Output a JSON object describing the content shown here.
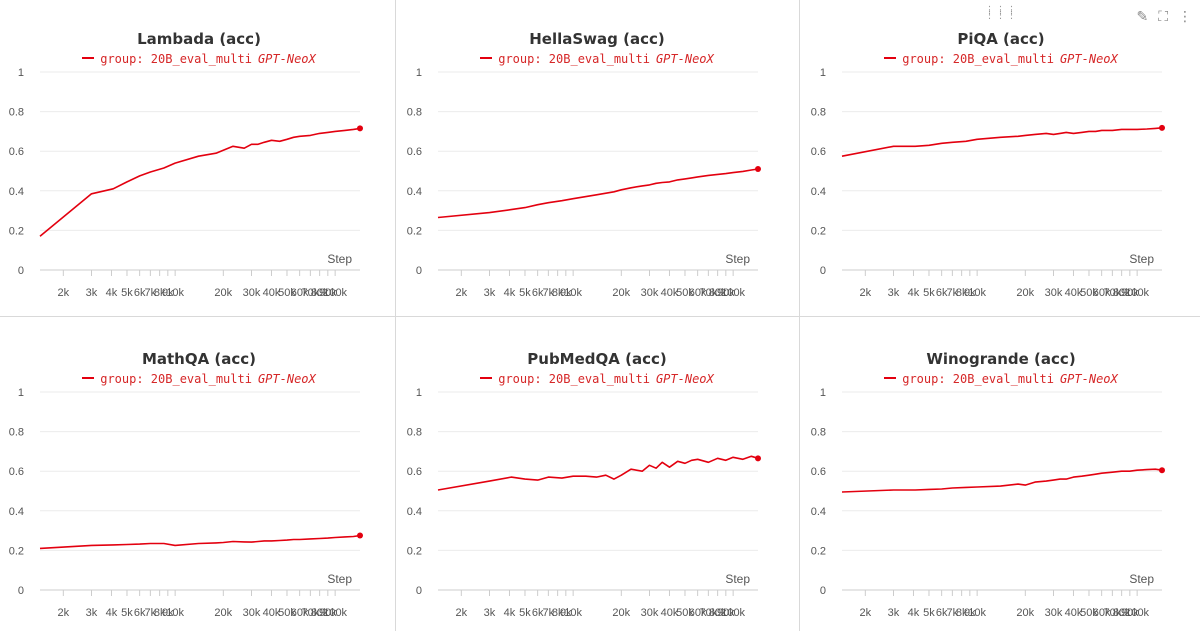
{
  "legend": {
    "label": "group: 20B_eval_multi",
    "tag": "GPT-NeoX"
  },
  "colors": {
    "series": "#e3000f",
    "grid": "#ebebeb",
    "axis_text": "#555555"
  },
  "x_axis": {
    "label": "Step",
    "scale": "log",
    "ticks": [
      "2k",
      "3k",
      "4k",
      "5k",
      "6k",
      "7k",
      "8k",
      "9k",
      "10k",
      "20k",
      "30k",
      "40k",
      "50k",
      "60k",
      "70k",
      "80k",
      "90k",
      "100k"
    ]
  },
  "y_axis": {
    "ticks": [
      "0",
      "0.2",
      "0.4",
      "0.6",
      "0.8",
      "1"
    ]
  },
  "toolbar": {
    "edit_icon": "pencil-icon",
    "expand_icon": "expand-icon",
    "more_icon": "more-vertical-icon",
    "drag_icon": "drag-handle-icon"
  },
  "chart_data": [
    {
      "type": "line",
      "title": "Lambada (acc)",
      "ylim": [
        0,
        1
      ],
      "xlim": [
        1430,
        143000
      ],
      "series": [
        {
          "name": "group: 20B_eval_multi",
          "x": [
            1430,
            3000,
            4100,
            5000,
            6000,
            7000,
            8500,
            10000,
            14000,
            18000,
            20000,
            23000,
            27000,
            30000,
            33000,
            36000,
            40000,
            45000,
            50000,
            55000,
            60000,
            70000,
            80000,
            90000,
            100000,
            115000,
            130000,
            143000
          ],
          "y": [
            0.17,
            0.385,
            0.41,
            0.445,
            0.475,
            0.495,
            0.515,
            0.54,
            0.575,
            0.59,
            0.605,
            0.625,
            0.615,
            0.635,
            0.635,
            0.645,
            0.655,
            0.65,
            0.66,
            0.67,
            0.675,
            0.68,
            0.69,
            0.695,
            0.7,
            0.705,
            0.71,
            0.715
          ]
        }
      ]
    },
    {
      "type": "line",
      "title": "HellaSwag (acc)",
      "ylim": [
        0,
        1
      ],
      "xlim": [
        1430,
        143000
      ],
      "series": [
        {
          "name": "group: 20B_eval_multi",
          "x": [
            1430,
            3000,
            4100,
            5000,
            6000,
            7000,
            8500,
            10000,
            14000,
            18000,
            20000,
            23000,
            27000,
            30000,
            33000,
            36000,
            40000,
            45000,
            50000,
            55000,
            60000,
            70000,
            80000,
            90000,
            100000,
            115000,
            130000,
            143000
          ],
          "y": [
            0.265,
            0.29,
            0.305,
            0.315,
            0.33,
            0.34,
            0.35,
            0.36,
            0.38,
            0.395,
            0.405,
            0.415,
            0.425,
            0.43,
            0.438,
            0.442,
            0.445,
            0.455,
            0.46,
            0.465,
            0.47,
            0.478,
            0.483,
            0.487,
            0.492,
            0.498,
            0.505,
            0.51
          ]
        }
      ]
    },
    {
      "type": "line",
      "title": "PiQA (acc)",
      "ylim": [
        0,
        1
      ],
      "xlim": [
        1430,
        143000
      ],
      "series": [
        {
          "name": "group: 20B_eval_multi",
          "x": [
            1430,
            3000,
            4100,
            5000,
            6000,
            7000,
            8500,
            10000,
            14000,
            18000,
            20000,
            23000,
            27000,
            30000,
            33000,
            36000,
            40000,
            45000,
            50000,
            55000,
            60000,
            70000,
            80000,
            90000,
            100000,
            115000,
            130000,
            143000
          ],
          "y": [
            0.575,
            0.625,
            0.625,
            0.63,
            0.64,
            0.645,
            0.65,
            0.66,
            0.67,
            0.675,
            0.68,
            0.685,
            0.69,
            0.685,
            0.69,
            0.695,
            0.69,
            0.695,
            0.7,
            0.7,
            0.705,
            0.705,
            0.71,
            0.71,
            0.71,
            0.712,
            0.715,
            0.718
          ]
        }
      ]
    },
    {
      "type": "line",
      "title": "MathQA (acc)",
      "ylim": [
        0,
        1
      ],
      "xlim": [
        1430,
        143000
      ],
      "series": [
        {
          "name": "group: 20B_eval_multi",
          "x": [
            1430,
            3000,
            4100,
            5000,
            6000,
            7000,
            8500,
            10000,
            14000,
            18000,
            20000,
            23000,
            27000,
            30000,
            33000,
            36000,
            40000,
            45000,
            50000,
            55000,
            60000,
            70000,
            80000,
            90000,
            100000,
            115000,
            130000,
            143000
          ],
          "y": [
            0.21,
            0.225,
            0.228,
            0.23,
            0.232,
            0.235,
            0.235,
            0.225,
            0.235,
            0.238,
            0.24,
            0.245,
            0.243,
            0.242,
            0.245,
            0.248,
            0.248,
            0.25,
            0.252,
            0.255,
            0.255,
            0.258,
            0.26,
            0.262,
            0.265,
            0.268,
            0.27,
            0.275
          ]
        }
      ]
    },
    {
      "type": "line",
      "title": "PubMedQA (acc)",
      "ylim": [
        0,
        1
      ],
      "xlim": [
        1430,
        143000
      ],
      "series": [
        {
          "name": "group: 20B_eval_multi",
          "x": [
            1430,
            3000,
            4100,
            5000,
            6000,
            7000,
            8500,
            10000,
            12000,
            14000,
            16000,
            18000,
            20000,
            23000,
            27000,
            30000,
            33000,
            36000,
            40000,
            45000,
            50000,
            55000,
            60000,
            70000,
            80000,
            90000,
            100000,
            115000,
            130000,
            143000
          ],
          "y": [
            0.505,
            0.55,
            0.57,
            0.56,
            0.555,
            0.57,
            0.565,
            0.575,
            0.575,
            0.57,
            0.58,
            0.56,
            0.58,
            0.61,
            0.6,
            0.63,
            0.615,
            0.645,
            0.62,
            0.65,
            0.64,
            0.655,
            0.66,
            0.645,
            0.665,
            0.655,
            0.67,
            0.66,
            0.675,
            0.665
          ]
        }
      ]
    },
    {
      "type": "line",
      "title": "Winogrande (acc)",
      "ylim": [
        0,
        1
      ],
      "xlim": [
        1430,
        143000
      ],
      "series": [
        {
          "name": "group: 20B_eval_multi",
          "x": [
            1430,
            3000,
            4100,
            5000,
            6000,
            7000,
            8500,
            10000,
            14000,
            18000,
            20000,
            23000,
            27000,
            30000,
            33000,
            36000,
            40000,
            45000,
            50000,
            55000,
            60000,
            70000,
            80000,
            90000,
            100000,
            115000,
            130000,
            143000
          ],
          "y": [
            0.495,
            0.505,
            0.505,
            0.508,
            0.51,
            0.515,
            0.518,
            0.52,
            0.525,
            0.535,
            0.53,
            0.545,
            0.55,
            0.555,
            0.56,
            0.56,
            0.57,
            0.575,
            0.58,
            0.585,
            0.59,
            0.595,
            0.6,
            0.6,
            0.605,
            0.608,
            0.61,
            0.605
          ]
        }
      ]
    }
  ]
}
